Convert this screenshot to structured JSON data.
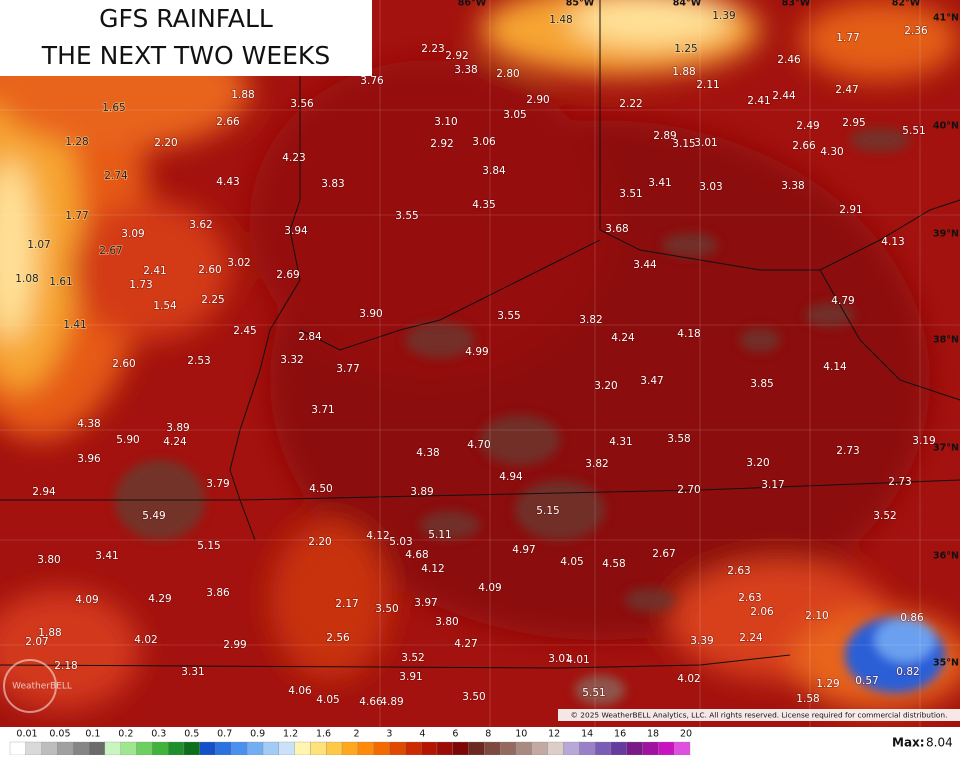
{
  "title": {
    "lines": [
      "GFS RAINFALL",
      "THE NEXT TWO WEEKS"
    ]
  },
  "map_labels": [
    "1.48",
    "1.39",
    "1.77",
    "2.36",
    "2.23",
    "2.92",
    "1.25",
    "3.76",
    "3.38",
    "2.80",
    "1.88",
    "2.46",
    "2.11",
    "2.47",
    "1.65",
    "1.88",
    "3.56",
    "2.90",
    "2.22",
    "2.41",
    "2.44",
    "3.05",
    "3.10",
    "2.66",
    "2.49",
    "2.95",
    "5.51",
    "1.28",
    "2.20",
    "2.92",
    "3.06",
    "2.89",
    "3.15",
    "3.01",
    "2.66",
    "4.30",
    "4.23",
    "3.84",
    "2.74",
    "4.43",
    "3.83",
    "3.41",
    "3.03",
    "3.38",
    "3.51",
    "4.35",
    "1.77",
    "3.55",
    "2.91",
    "3.62",
    "3.94",
    "3.68",
    "3.09",
    "4.13",
    "1.07",
    "2.67",
    "3.02",
    "3.44",
    "2.41",
    "2.60",
    "2.69",
    "1.08",
    "1.61",
    "1.73",
    "2.25",
    "1.54",
    "4.79",
    "3.90",
    "3.55",
    "3.82",
    "1.41",
    "2.45",
    "4.24",
    "4.18",
    "2.84",
    "4.99",
    "3.32",
    "2.60",
    "2.53",
    "3.77",
    "4.14",
    "3.47",
    "3.20",
    "3.85",
    "3.71",
    "4.38",
    "3.89",
    "5.90",
    "4.24",
    "4.70",
    "4.31",
    "3.58",
    "3.19",
    "4.38",
    "2.73",
    "3.96",
    "3.82",
    "3.20",
    "4.94",
    "3.79",
    "2.73",
    "4.50",
    "3.89",
    "2.70",
    "3.17",
    "2.94",
    "5.15",
    "5.49",
    "3.52",
    "4.12",
    "5.03",
    "5.11",
    "2.20",
    "5.15",
    "4.97",
    "4.68",
    "2.67",
    "3.41",
    "3.80",
    "4.05",
    "4.58",
    "4.12",
    "2.63",
    "4.09",
    "3.86",
    "4.09",
    "4.29",
    "2.63",
    "2.17",
    "3.97",
    "3.50",
    "2.06",
    "2.10",
    "0.86",
    "3.80",
    "1.88",
    "2.56",
    "4.02",
    "2.99",
    "4.27",
    "3.39",
    "2.24",
    "2.07",
    "3.52",
    "3.01",
    "4.01",
    "2.18",
    "3.31",
    "0.82",
    "1.29",
    "0.57",
    "3.91",
    "4.02",
    "4.06",
    "5.51",
    "1.58",
    "3.50",
    "4.05",
    "4.66",
    "4.89"
  ],
  "coordinate_labels": [
    "86°W",
    "85°W",
    "84°W",
    "83°W",
    "82°W",
    "41°N",
    "40°N",
    "39°N",
    "38°N",
    "37°N",
    "36°N",
    "35°N"
  ],
  "legend": {
    "ticks": [
      "0.01",
      "0.05",
      "0.1",
      "0.2",
      "0.3",
      "0.5",
      "0.7",
      "0.9",
      "1.2",
      "1.6",
      "2",
      "3",
      "4",
      "6",
      "8",
      "10",
      "12",
      "14",
      "16",
      "18",
      "20"
    ],
    "max_label": "Max:",
    "max_value": "8.04"
  },
  "logo": "WeatherBELL",
  "copyright": "© 2025 WeatherBELL Analytics, LLC. All rights reserved. License required for commercial distribution."
}
